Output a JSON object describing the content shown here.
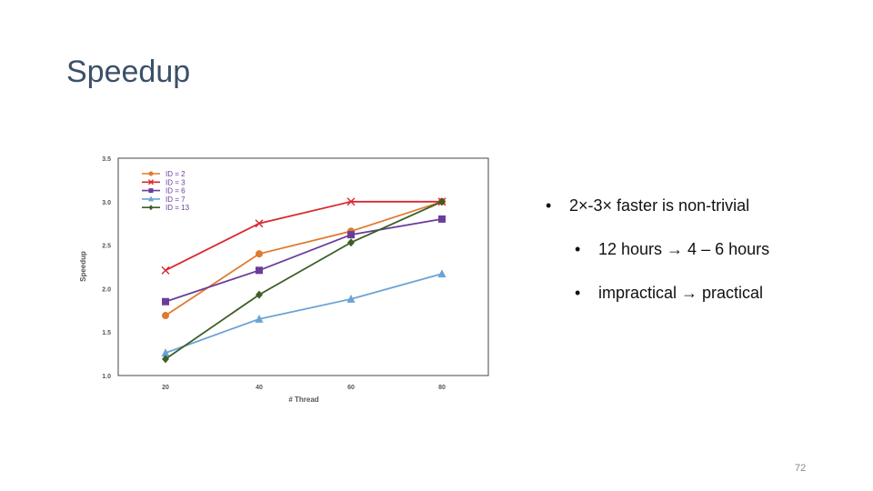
{
  "slide": {
    "title": "Speedup",
    "page_number": "72",
    "bullets": [
      {
        "text": "2×-3× faster is non-trivial"
      },
      {
        "text": "12 hours → 4 – 6 hours"
      },
      {
        "text": "impractical → practical"
      }
    ]
  },
  "chart_data": {
    "type": "line",
    "xlabel": "# Thread",
    "ylabel": "Speedup",
    "x": [
      20,
      40,
      60,
      80
    ],
    "ylim": [
      1.0,
      3.5
    ],
    "yticks": [
      "1.0",
      "1.5",
      "2.0",
      "2.5",
      "3.0",
      "3.5"
    ],
    "xticks": [
      "20",
      "40",
      "60",
      "80"
    ],
    "grid": false,
    "legend_position": "top-left",
    "series": [
      {
        "name": "ID = 2",
        "color": "#e07a2e",
        "marker": "circle",
        "values": [
          1.69,
          2.4,
          2.66,
          3.0
        ]
      },
      {
        "name": "ID = 3",
        "color": "#d9282e",
        "marker": "x",
        "values": [
          2.21,
          2.75,
          3.0,
          3.0
        ]
      },
      {
        "name": "ID = 6",
        "color": "#6a3d9a",
        "marker": "square",
        "values": [
          1.85,
          2.21,
          2.62,
          2.8
        ]
      },
      {
        "name": "ID = 7",
        "color": "#6ba3d6",
        "marker": "triangle",
        "values": [
          1.26,
          1.65,
          1.88,
          2.17
        ]
      },
      {
        "name": "ID = 13",
        "color": "#3d5e26",
        "marker": "diamond",
        "values": [
          1.19,
          1.93,
          2.53,
          3.0
        ]
      }
    ]
  }
}
